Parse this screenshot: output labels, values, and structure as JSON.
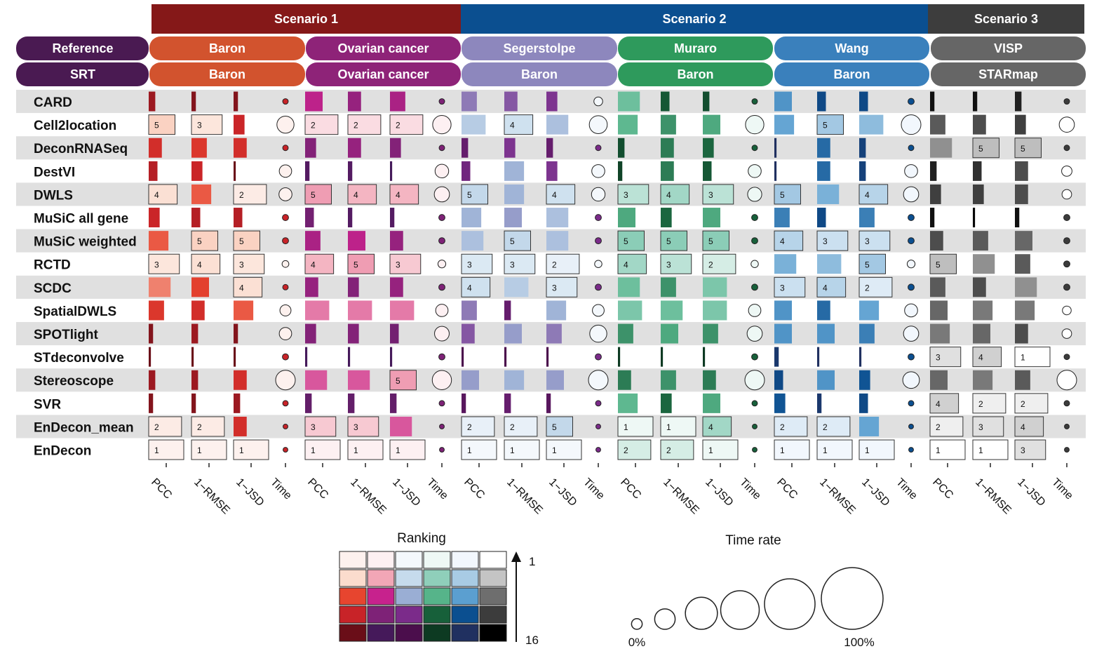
{
  "chart_data": {
    "type": "heatmap",
    "scenarios": [
      {
        "label": "Scenario 1",
        "color": "#851818"
      },
      {
        "label": "Scenario 2",
        "color": "#0b4f90"
      },
      {
        "label": "Scenario 3",
        "color": "#3d3d3d"
      }
    ],
    "row_header_labels": [
      "Reference",
      "SRT"
    ],
    "row_header_color": "#4a1a52",
    "datasets": [
      {
        "reference": "Baron",
        "srt": "Baron",
        "scenario": 0,
        "color": "#d2532e"
      },
      {
        "reference": "Ovarian cancer",
        "srt": "Ovarian cancer",
        "scenario": 0,
        "color": "#8e2378"
      },
      {
        "reference": "Segerstolpe",
        "srt": "Baron",
        "scenario": 1,
        "color": "#8d87bd"
      },
      {
        "reference": "Muraro",
        "srt": "Baron",
        "scenario": 1,
        "color": "#2e9a5c"
      },
      {
        "reference": "Wang",
        "srt": "Baron",
        "scenario": 1,
        "color": "#3a80bc"
      },
      {
        "reference": "VISP",
        "srt": "STARmap",
        "scenario": 2,
        "color": "#666666"
      }
    ],
    "metrics": [
      "PCC",
      "1−RMSE",
      "1−JSD",
      "Time"
    ],
    "methods": [
      "CARD",
      "Cell2location",
      "DeconRNASeq",
      "DestVI",
      "DWLS",
      "MuSiC all gene",
      "MuSiC weighted",
      "RCTD",
      "SCDC",
      "SpatialDWLS",
      "SPOTlight",
      "STdeconvolve",
      "Stereoscope",
      "SVR",
      "EnDecon_mean",
      "EnDecon"
    ],
    "ranks": [
      [
        [
          14,
          15,
          15
        ],
        [
          9,
          11,
          10
        ],
        [
          10,
          11,
          12
        ],
        [
          7,
          13,
          14
        ],
        [
          9,
          13,
          13
        ],
        [
          15,
          15,
          14
        ]
      ],
      [
        [
          5,
          3,
          12
        ],
        [
          2,
          2,
          2
        ],
        [
          6,
          4,
          7
        ],
        [
          8,
          10,
          9
        ],
        [
          8,
          5,
          6
        ],
        [
          10,
          11,
          12
        ]
      ],
      [
        [
          11,
          10,
          11
        ],
        [
          12,
          11,
          12
        ],
        [
          14,
          12,
          14
        ],
        [
          14,
          11,
          12
        ],
        [
          16,
          11,
          14
        ],
        [
          7,
          5,
          5
        ]
      ],
      [
        [
          13,
          12,
          16
        ],
        [
          15,
          15,
          16
        ],
        [
          13,
          8,
          12
        ],
        [
          15,
          11,
          13
        ],
        [
          16,
          11,
          14
        ],
        [
          14,
          13,
          11
        ]
      ],
      [
        [
          4,
          8,
          2
        ],
        [
          5,
          4,
          4
        ],
        [
          5,
          8,
          4
        ],
        [
          3,
          4,
          3
        ],
        [
          5,
          7,
          4
        ],
        [
          12,
          12,
          11
        ]
      ],
      [
        [
          12,
          13,
          13
        ],
        [
          13,
          15,
          15
        ],
        [
          8,
          9,
          7
        ],
        [
          9,
          12,
          9
        ],
        [
          10,
          13,
          10
        ],
        [
          15,
          16,
          15
        ]
      ],
      [
        [
          8,
          5,
          5
        ],
        [
          10,
          9,
          11
        ],
        [
          7,
          5,
          7
        ],
        [
          5,
          5,
          5
        ],
        [
          4,
          3,
          3
        ],
        [
          11,
          10,
          9
        ]
      ],
      [
        [
          3,
          4,
          3
        ],
        [
          4,
          5,
          3
        ],
        [
          3,
          3,
          2
        ],
        [
          4,
          3,
          2
        ],
        [
          7,
          6,
          5
        ],
        [
          5,
          7,
          10
        ]
      ],
      [
        [
          7,
          9,
          4
        ],
        [
          11,
          12,
          11
        ],
        [
          4,
          6,
          3
        ],
        [
          7,
          10,
          6
        ],
        [
          3,
          4,
          2
        ],
        [
          10,
          11,
          7
        ]
      ],
      [
        [
          10,
          11,
          8
        ],
        [
          6,
          6,
          6
        ],
        [
          10,
          14,
          8
        ],
        [
          6,
          7,
          6
        ],
        [
          9,
          11,
          8
        ],
        [
          9,
          8,
          8
        ]
      ],
      [
        [
          15,
          14,
          15
        ],
        [
          12,
          12,
          13
        ],
        [
          11,
          9,
          10
        ],
        [
          10,
          9,
          10
        ],
        [
          9,
          9,
          10
        ],
        [
          8,
          9,
          11
        ]
      ],
      [
        [
          16,
          16,
          16
        ],
        [
          16,
          16,
          16
        ],
        [
          16,
          16,
          16
        ],
        [
          16,
          16,
          16
        ],
        [
          15,
          16,
          16
        ],
        [
          3,
          4,
          1
        ]
      ],
      [
        [
          14,
          14,
          11
        ],
        [
          7,
          7,
          5
        ],
        [
          9,
          8,
          9
        ],
        [
          11,
          10,
          11
        ],
        [
          13,
          9,
          12
        ],
        [
          9,
          8,
          10
        ]
      ],
      [
        [
          15,
          15,
          14
        ],
        [
          14,
          14,
          14
        ],
        [
          15,
          14,
          15
        ],
        [
          8,
          12,
          9
        ],
        [
          12,
          15,
          13
        ],
        [
          4,
          2,
          2
        ]
      ],
      [
        [
          2,
          2,
          11
        ],
        [
          3,
          3,
          7
        ],
        [
          2,
          2,
          5
        ],
        [
          1,
          1,
          4
        ],
        [
          2,
          2,
          8
        ],
        [
          2,
          3,
          4
        ]
      ],
      [
        [
          1,
          1,
          1
        ],
        [
          1,
          1,
          1
        ],
        [
          1,
          1,
          1
        ],
        [
          2,
          2,
          1
        ],
        [
          1,
          1,
          1
        ],
        [
          1,
          1,
          3
        ]
      ]
    ],
    "time_rate_percent": [
      [
        4,
        4,
        10,
        4,
        5,
        4
      ],
      [
        38,
        44,
        42,
        44,
        50,
        30
      ],
      [
        4,
        4,
        4,
        4,
        4,
        4
      ],
      [
        20,
        24,
        22,
        22,
        22,
        14
      ],
      [
        22,
        30,
        24,
        26,
        30,
        12
      ],
      [
        5,
        5,
        5,
        5,
        5,
        5
      ],
      [
        5,
        5,
        5,
        5,
        5,
        5
      ],
      [
        6,
        8,
        7,
        7,
        8,
        5
      ],
      [
        4,
        5,
        5,
        5,
        5,
        5
      ],
      [
        16,
        20,
        18,
        20,
        22,
        10
      ],
      [
        20,
        28,
        38,
        30,
        30,
        12
      ],
      [
        5,
        5,
        5,
        5,
        5,
        4
      ],
      [
        50,
        48,
        50,
        50,
        36,
        50
      ],
      [
        4,
        4,
        4,
        4,
        4,
        4
      ],
      [
        3,
        3,
        3,
        3,
        3,
        3
      ],
      [
        3,
        3,
        3,
        3,
        3,
        3
      ]
    ],
    "legend": {
      "ranking_title": "Ranking",
      "ranking_min_label": "1",
      "ranking_max_label": "16",
      "time_title": "Time rate",
      "time_min_label": "0%",
      "time_max_label": "100%",
      "time_sizes_percent": [
        3,
        11,
        27,
        39,
        67,
        100
      ]
    },
    "palettes": [
      [
        "#fdf1ee",
        "#fbdccd",
        "#e7452f",
        "#c82328",
        "#6a0e18"
      ],
      [
        "#fdf0f2",
        "#f2a6b6",
        "#c7228d",
        "#7e2277",
        "#45195a"
      ],
      [
        "#f4f8fc",
        "#c6dbec",
        "#9aaed4",
        "#7b2b8a",
        "#4b0e4c"
      ],
      [
        "#eef8f5",
        "#8fcfba",
        "#56b48a",
        "#17603a",
        "#0d3a22"
      ],
      [
        "#f2f7fd",
        "#a8cbe4",
        "#5b9fd0",
        "#0b4f90",
        "#203060"
      ],
      [
        "#ffffff",
        "#c4c4c4",
        "#6e6e6e",
        "#3c3c3c",
        "#000000"
      ]
    ]
  }
}
